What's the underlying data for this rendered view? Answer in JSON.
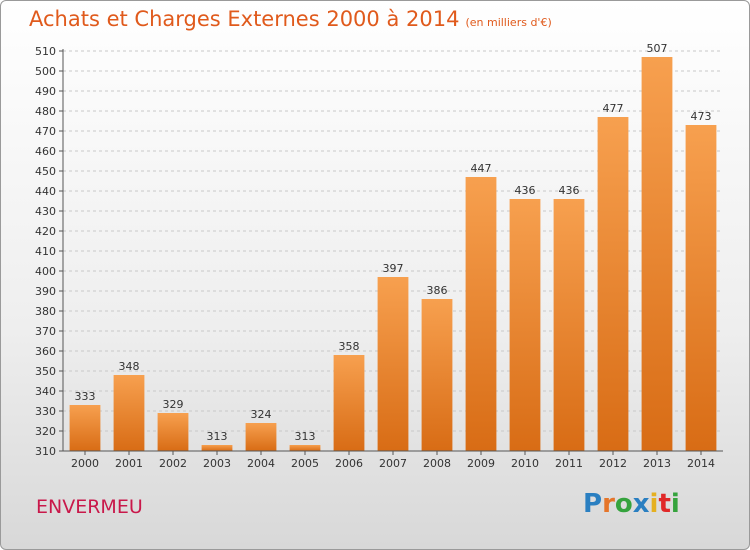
{
  "header": {
    "title": "Achats et Charges Externes 2000 à 2014",
    "subtitle": "(en milliers d'€)"
  },
  "footer": {
    "commune": "ENVERMEU",
    "logo_text": "Proxiti"
  },
  "colors": {
    "bar_top": "#f7a04f",
    "bar_bottom": "#d86c15",
    "title": "#e05a1c",
    "commune": "#c9184a"
  },
  "chart_data": {
    "type": "bar",
    "title": "Achats et Charges Externes 2000 à 2014",
    "subtitle": "(en milliers d'€)",
    "categories": [
      "2000",
      "2001",
      "2002",
      "2003",
      "2004",
      "2005",
      "2006",
      "2007",
      "2008",
      "2009",
      "2010",
      "2011",
      "2012",
      "2013",
      "2014"
    ],
    "values": [
      333,
      348,
      329,
      313,
      324,
      313,
      358,
      397,
      386,
      447,
      436,
      436,
      477,
      507,
      473
    ],
    "xlabel": "",
    "ylabel": "",
    "ylim": [
      310,
      510
    ],
    "ytick_step": 10,
    "grid": true,
    "data_labels": true
  }
}
